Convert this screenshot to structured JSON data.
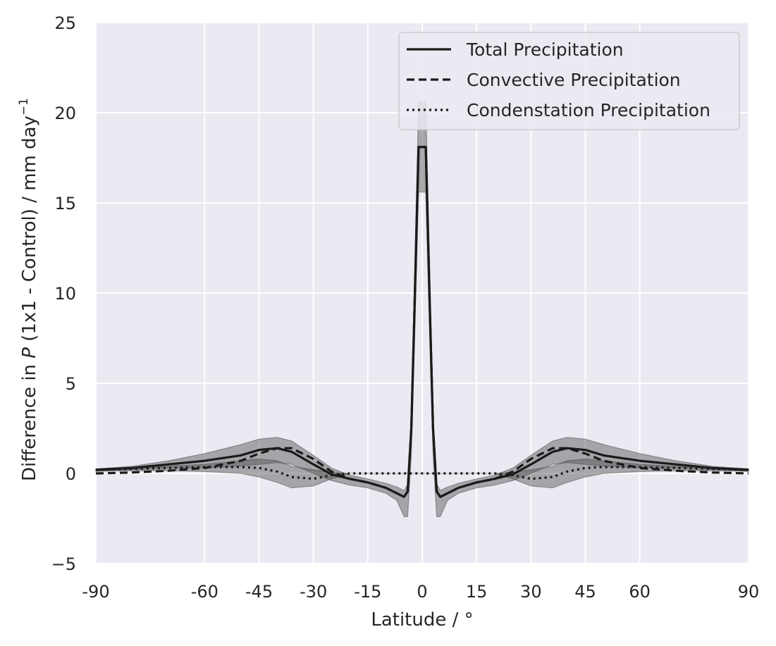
{
  "chart_data": {
    "type": "line",
    "xlabel": "Latitude / °",
    "ylabel": {
      "prefix": "Difference in ",
      "italic": "P",
      "suffix": " (1x1 - Control) / mm day",
      "superscript": "−1"
    },
    "xlim": [
      -90,
      90
    ],
    "ylim": [
      -5,
      25
    ],
    "x_tick_values": [
      -90,
      -60,
      -45,
      -30,
      -15,
      0,
      15,
      30,
      45,
      60,
      90
    ],
    "x_tick_labels": [
      "-90",
      "-60",
      "-45",
      "-30",
      "-15",
      "0",
      "15",
      "30",
      "45",
      "60",
      "90"
    ],
    "y_tick_values": [
      -5,
      0,
      5,
      10,
      15,
      20,
      25
    ],
    "y_tick_labels": [
      "−5",
      "0",
      "5",
      "10",
      "15",
      "20",
      "25"
    ],
    "grid": true,
    "legend_position": "top-right",
    "colors": {
      "background": "#eaeaf2",
      "grid": "#ffffff",
      "line": "#1a1a1a",
      "band": "#505050"
    },
    "x": [
      -90,
      -80,
      -70,
      -60,
      -50,
      -45,
      -40,
      -36,
      -30,
      -25,
      -20,
      -15,
      -10,
      -7,
      -5,
      -4,
      -3,
      -2,
      -1,
      0,
      1,
      2,
      3,
      4,
      5,
      7,
      10,
      15,
      20,
      25,
      30,
      36,
      40,
      45,
      50,
      60,
      70,
      80,
      90
    ],
    "series": [
      {
        "name": "Total Precipitation",
        "style": "solid",
        "values": [
          0.2,
          0.3,
          0.5,
          0.7,
          1.0,
          1.3,
          1.4,
          1.2,
          0.5,
          -0.05,
          -0.3,
          -0.5,
          -0.8,
          -1.1,
          -1.3,
          -1.0,
          2.5,
          10.0,
          18.1,
          18.1,
          18.1,
          10.0,
          2.5,
          -1.0,
          -1.3,
          -1.1,
          -0.8,
          -0.5,
          -0.3,
          -0.05,
          0.5,
          1.2,
          1.4,
          1.3,
          1.0,
          0.7,
          0.5,
          0.3,
          0.2
        ],
        "band_upper": [
          0.25,
          0.4,
          0.7,
          1.1,
          1.6,
          1.9,
          2.0,
          1.8,
          1.0,
          0.3,
          -0.1,
          -0.3,
          -0.55,
          -0.75,
          -0.95,
          -0.6,
          3.2,
          12.0,
          20.6,
          20.6,
          20.6,
          12.0,
          3.2,
          -0.6,
          -0.95,
          -0.75,
          -0.55,
          -0.3,
          -0.1,
          0.3,
          1.0,
          1.8,
          2.0,
          1.9,
          1.6,
          1.1,
          0.7,
          0.4,
          0.25
        ],
        "band_lower": [
          0.1,
          0.2,
          0.3,
          0.3,
          0.4,
          0.5,
          0.6,
          0.5,
          0.0,
          -0.4,
          -0.65,
          -0.8,
          -1.1,
          -1.5,
          -2.4,
          -2.4,
          1.0,
          8.0,
          15.6,
          15.6,
          15.6,
          8.0,
          1.0,
          -2.4,
          -2.4,
          -1.5,
          -1.1,
          -0.8,
          -0.65,
          -0.4,
          0.0,
          0.5,
          0.6,
          0.5,
          0.4,
          0.3,
          0.3,
          0.2,
          0.1
        ]
      },
      {
        "name": "Convective Precipitation",
        "style": "dashed",
        "values": [
          0.0,
          0.05,
          0.15,
          0.3,
          0.7,
          1.1,
          1.4,
          1.4,
          0.8,
          0.1,
          -0.3,
          -0.5,
          -0.8,
          -1.1,
          -1.3,
          -1.0,
          2.5,
          10.0,
          18.1,
          18.1,
          18.1,
          10.0,
          2.5,
          -1.0,
          -1.3,
          -1.1,
          -0.8,
          -0.5,
          -0.3,
          0.1,
          0.8,
          1.4,
          1.4,
          1.1,
          0.7,
          0.3,
          0.15,
          0.05,
          0.0
        ]
      },
      {
        "name": "Condenstation Precipitation",
        "style": "dotted",
        "values": [
          0.2,
          0.25,
          0.3,
          0.35,
          0.35,
          0.3,
          0.1,
          -0.2,
          -0.3,
          -0.1,
          0.0,
          0.0,
          0.0,
          0.0,
          0.0,
          0.0,
          0.0,
          0.0,
          0.0,
          0.0,
          0.0,
          0.0,
          0.0,
          0.0,
          0.0,
          0.0,
          0.0,
          0.0,
          0.0,
          -0.1,
          -0.3,
          -0.2,
          0.1,
          0.3,
          0.35,
          0.35,
          0.3,
          0.25,
          0.2
        ],
        "band_upper": [
          0.25,
          0.3,
          0.4,
          0.5,
          0.7,
          0.8,
          0.7,
          0.4,
          0.2,
          0.05,
          0.0,
          0.0,
          0.0,
          0.0,
          0.0,
          0.0,
          0.0,
          0.0,
          0.0,
          0.0,
          0.0,
          0.0,
          0.0,
          0.0,
          0.0,
          0.0,
          0.0,
          0.0,
          0.0,
          0.05,
          0.2,
          0.4,
          0.7,
          0.8,
          0.7,
          0.5,
          0.4,
          0.3,
          0.25
        ],
        "band_lower": [
          0.15,
          0.15,
          0.15,
          0.1,
          0.0,
          -0.2,
          -0.5,
          -0.8,
          -0.7,
          -0.3,
          0.0,
          0.0,
          0.0,
          0.0,
          0.0,
          0.0,
          0.0,
          0.0,
          0.0,
          0.0,
          0.0,
          0.0,
          0.0,
          0.0,
          0.0,
          0.0,
          0.0,
          0.0,
          0.0,
          -0.3,
          -0.7,
          -0.8,
          -0.5,
          -0.2,
          0.0,
          0.1,
          0.15,
          0.15,
          0.15
        ]
      }
    ]
  }
}
